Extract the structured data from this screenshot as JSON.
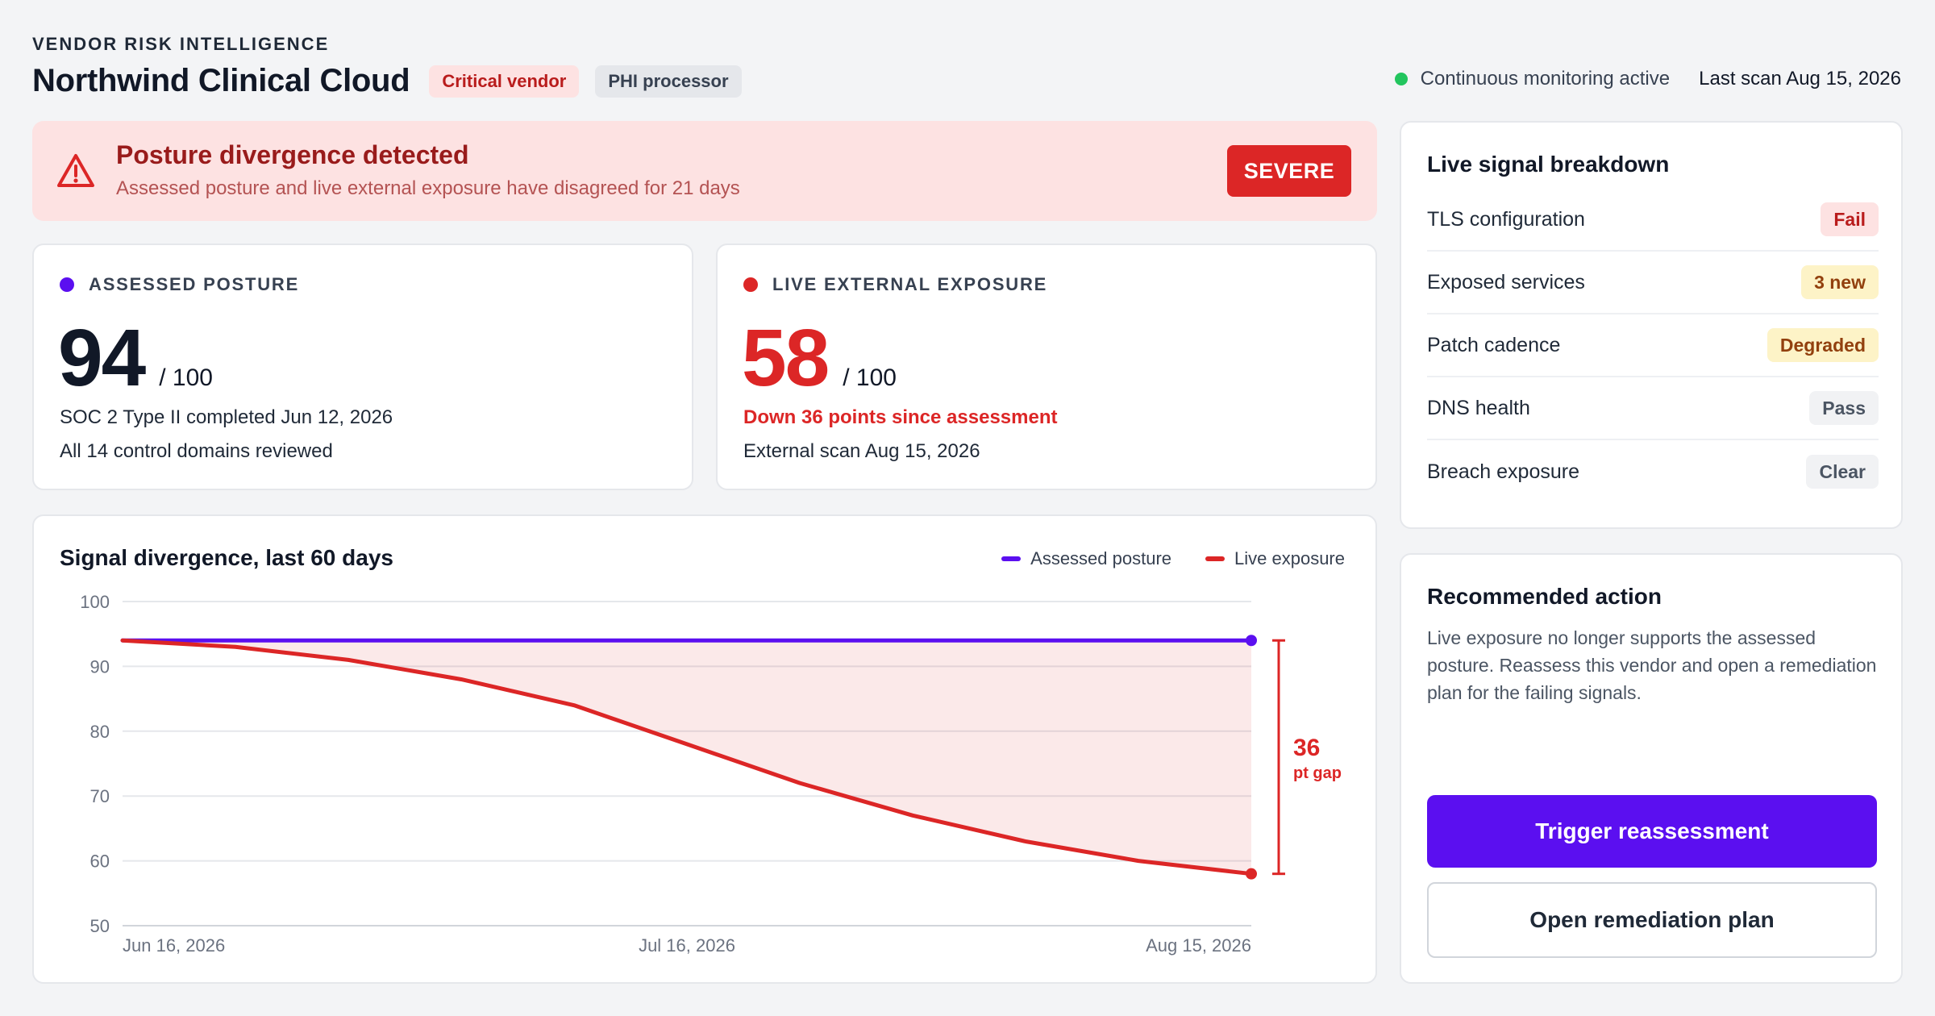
{
  "header": {
    "eyebrow": "VENDOR RISK INTELLIGENCE",
    "title": "Northwind Clinical Cloud",
    "tags": [
      "Critical vendor",
      "PHI processor"
    ],
    "monitoring_status": "Continuous monitoring active",
    "monitoring_color": "#22c55e",
    "last_scan": "Last scan Aug 15, 2026"
  },
  "alert": {
    "icon": "warning-triangle-icon",
    "title": "Posture divergence detected",
    "subtitle": "Assessed posture and live external exposure have disagreed for 21 days",
    "severity": "SEVERE",
    "color": "#dc2626"
  },
  "assessed": {
    "label": "ASSESSED POSTURE",
    "score": "94",
    "suffix": "/ 100",
    "line1": "SOC 2 Type II completed Jun 12, 2026",
    "line2": "All 14 control domains reviewed",
    "color": "#5b0ff0"
  },
  "live": {
    "label": "LIVE EXTERNAL EXPOSURE",
    "score": "58",
    "suffix": "/ 100",
    "line1": "Down 36 points since assessment",
    "line2": "External scan Aug 15, 2026",
    "color": "#dc2626"
  },
  "chart": {
    "title": "Signal divergence, last 60 days",
    "gap_value": "36",
    "gap_label": "pt gap"
  },
  "chart_data": {
    "type": "line",
    "title": "Signal divergence, last 60 days",
    "x": [
      0,
      6,
      12,
      18,
      24,
      30,
      36,
      42,
      48,
      54,
      60
    ],
    "x_tick_labels": [
      {
        "x": 0,
        "label": "Jun 16, 2026"
      },
      {
        "x": 30,
        "label": "Jul 16, 2026"
      },
      {
        "x": 60,
        "label": "Aug 15, 2026"
      }
    ],
    "ylim": [
      50,
      100
    ],
    "yticks": [
      50,
      60,
      70,
      80,
      90,
      100
    ],
    "grid": true,
    "legend_position": "top-right",
    "series": [
      {
        "name": "Assessed posture",
        "color": "#5b0ff0",
        "values": [
          94,
          94,
          94,
          94,
          94,
          94,
          94,
          94,
          94,
          94,
          94
        ]
      },
      {
        "name": "Live exposure",
        "color": "#dc2626",
        "values": [
          94,
          93,
          91,
          88,
          84,
          78,
          72,
          67,
          63,
          60,
          58
        ]
      }
    ]
  },
  "signals": {
    "title": "Live signal breakdown",
    "items": [
      {
        "name": "TLS configuration",
        "status": "Fail",
        "kind": "fail"
      },
      {
        "name": "Exposed services",
        "status": "3 new",
        "kind": "warn"
      },
      {
        "name": "Patch cadence",
        "status": "Degraded",
        "kind": "warn"
      },
      {
        "name": "DNS health",
        "status": "Pass",
        "kind": "neutral"
      },
      {
        "name": "Breach exposure",
        "status": "Clear",
        "kind": "neutral"
      }
    ]
  },
  "action": {
    "title": "Recommended action",
    "text": "Live exposure no longer supports the assessed posture. Reassess this vendor and open a remediation plan for the failing signals.",
    "primary_label": "Trigger reassessment",
    "secondary_label": "Open remediation plan"
  }
}
